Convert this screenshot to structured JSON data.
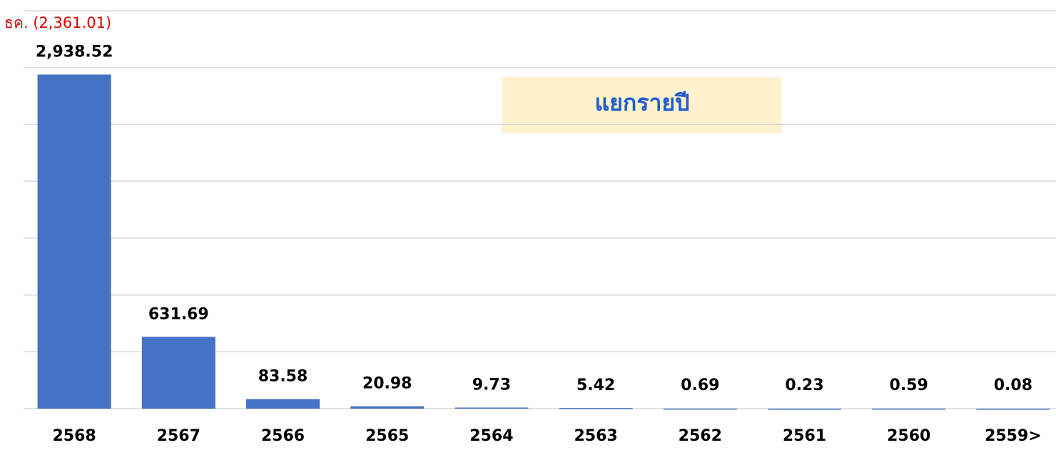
{
  "chart_data": {
    "type": "bar",
    "categories": [
      "2568",
      "2567",
      "2566",
      "2565",
      "2564",
      "2563",
      "2562",
      "2561",
      "2560",
      "2559>"
    ],
    "values": [
      2938.52,
      631.69,
      83.58,
      20.98,
      9.73,
      5.42,
      0.69,
      0.23,
      0.59,
      0.08
    ],
    "value_labels": [
      "2,938.52",
      "631.69",
      "83.58",
      "20.98",
      "9.73",
      "5.42",
      "0.69",
      "0.23",
      "0.59",
      "0.08"
    ],
    "color": "#4472c4",
    "ylim": [
      0,
      3500
    ],
    "yticks": [
      0,
      500,
      1000,
      1500,
      2000,
      2500,
      3000,
      3500
    ],
    "grid": true,
    "annotations": [
      "ธค. (2,361.01)",
      "แยกรายปี"
    ]
  }
}
